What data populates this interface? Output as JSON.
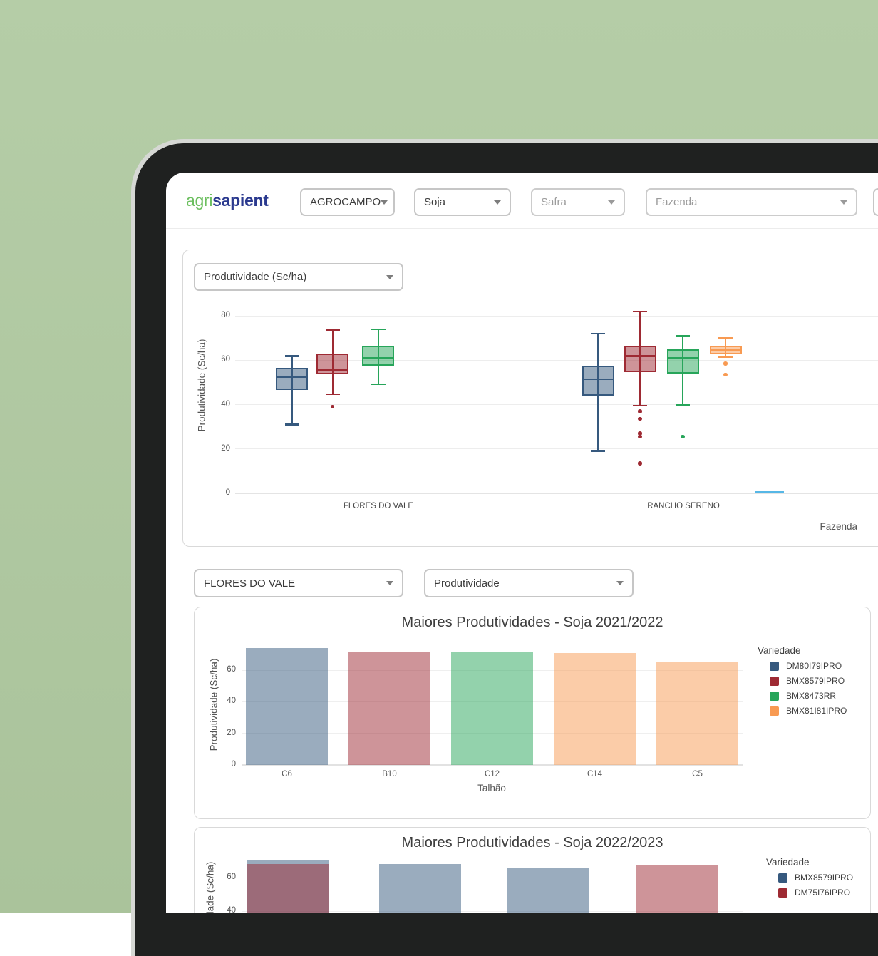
{
  "header": {
    "logo_part1": "agri",
    "logo_part2": "sapient",
    "org_select": "AGROCAMPO",
    "crop_select": "Soja",
    "season_placeholder": "Safra",
    "farm_placeholder": "Fazenda"
  },
  "boxplot_section": {
    "metric_select": "Produtividade (Sc/ha)"
  },
  "detail_section": {
    "farm_select": "FLORES DO VALE",
    "metric_select": "Produtividade"
  },
  "colors": {
    "background": "#aec7a0",
    "bezel": "#1f2120",
    "frame_edge": "#d6d8d4",
    "logo_green": "#6cbf5f",
    "logo_navy": "#2b3a8f",
    "cyan_partial": "#56b7e6",
    "palette": {
      "blue": {
        "solid": "#36597e",
        "fill": "rgba(54,89,126,0.5)"
      },
      "red": {
        "solid": "#9e2a33",
        "fill": "rgba(158,42,51,0.5)"
      },
      "green": {
        "solid": "#27a55a",
        "fill": "rgba(39,165,90,0.5)"
      },
      "orange": {
        "solid": "#f89a52",
        "fill": "rgba(248,154,82,0.5)"
      }
    }
  },
  "chart_data": [
    {
      "type": "boxplot",
      "ylabel": "Produtividade (Sc/ha)",
      "xlabel": "Fazenda",
      "yticks": [
        0,
        20,
        40,
        60,
        80
      ],
      "ylim": [
        0,
        85
      ],
      "groups": [
        {
          "label": "FLORES DO VALE",
          "boxes": [
            {
              "color": "blue",
              "low": 31,
              "q1": 46.5,
              "median": 52.5,
              "q3": 56.5,
              "high": 62,
              "outliers": []
            },
            {
              "color": "red",
              "low": 44.5,
              "q1": 53.5,
              "median": 55.5,
              "q3": 63,
              "high": 73.5,
              "outliers": [
                39
              ]
            },
            {
              "color": "green",
              "low": 49,
              "q1": 57.5,
              "median": 61,
              "q3": 66.5,
              "high": 74,
              "outliers": []
            }
          ]
        },
        {
          "label": "RANCHO SERENO",
          "boxes": [
            {
              "color": "blue",
              "low": 19,
              "q1": 44,
              "median": 51.5,
              "q3": 57.5,
              "high": 72,
              "outliers": []
            },
            {
              "color": "red",
              "low": 39.5,
              "q1": 54.5,
              "median": 62,
              "q3": 66.5,
              "high": 82,
              "outliers": [
                37,
                33.5,
                27,
                25.5,
                13.5
              ]
            },
            {
              "color": "green",
              "low": 40,
              "q1": 54,
              "median": 61,
              "q3": 65,
              "high": 71,
              "outliers": [
                25.5
              ]
            },
            {
              "color": "orange",
              "low": 61.5,
              "q1": 62.5,
              "median": 64.5,
              "q3": 66.5,
              "high": 70,
              "outliers": [
                58.5,
                53.5
              ]
            }
          ]
        }
      ]
    },
    {
      "type": "bar",
      "title": "Maiores Produtividades - Soja 2021/2022",
      "ylabel": "Produtividade (Sc/ha)",
      "xlabel": "Talhão",
      "yticks": [
        0,
        20,
        40,
        60
      ],
      "categories": [
        "C6",
        "B10",
        "C12",
        "C14",
        "C5"
      ],
      "values": [
        74,
        71.5,
        71.3,
        71,
        65.5
      ],
      "bar_colors": [
        "blue",
        "red",
        "green",
        "orange",
        "orange"
      ],
      "legend": {
        "title": "Variedade",
        "items": [
          {
            "label": "DM80I79IPRO",
            "color": "blue"
          },
          {
            "label": "BMX8579IPRO",
            "color": "red"
          },
          {
            "label": "BMX8473RR",
            "color": "green"
          },
          {
            "label": "BMX81I81IPRO",
            "color": "orange"
          }
        ]
      }
    },
    {
      "type": "bar",
      "title": "Maiores Produtividades - Soja 2022/2023",
      "ylabel": "Produtividade (Sc/ha)",
      "yticks": [
        40,
        60
      ],
      "bars": [
        {
          "segments": [
            {
              "color": "blue",
              "value": 70
            },
            {
              "color": "red",
              "value": 68
            }
          ]
        },
        {
          "segments": [
            {
              "color": "blue",
              "value": 68
            }
          ]
        },
        {
          "segments": [
            {
              "color": "blue",
              "value": 66
            }
          ]
        },
        {
          "segments": [
            {
              "color": "red",
              "value": 67.5
            }
          ]
        }
      ],
      "legend": {
        "title": "Variedade",
        "items": [
          {
            "label": "BMX8579IPRO",
            "color": "blue"
          },
          {
            "label": "DM75I76IPRO",
            "color": "red"
          }
        ]
      }
    }
  ]
}
